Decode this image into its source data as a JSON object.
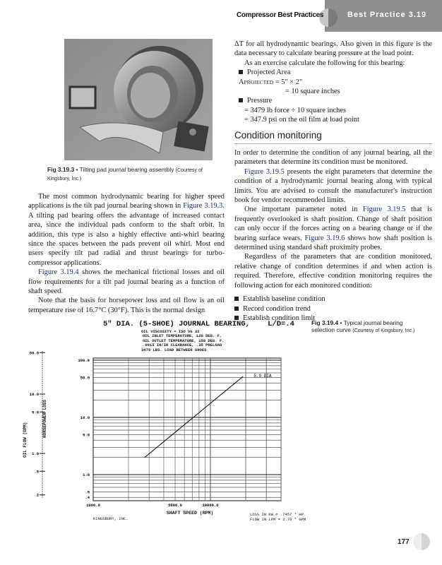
{
  "header": {
    "book_title": "Compressor Best Practices",
    "section_label": "Best Practice 3.19"
  },
  "figure_3": {
    "label": "Fig 3.19.3",
    "bullet": "•",
    "title": "Tilting pad journal bearing assembly",
    "credit": "(Courtesy of Kingsbury, Inc.)"
  },
  "figure_4": {
    "label": "Fig 3.19.4",
    "bullet": "•",
    "title": "Typical journal bearing selection curve",
    "credit": "(Courtesy of Kingsbury, Inc.)"
  },
  "left_col": {
    "p1": {
      "a": "The most common hydrodynamic bearing for higher speed applications is the tilt pad journal bearing shown in ",
      "link": "Figure 3.19.3",
      "b": ". A tilting pad bearing offers the advantage of increased contact area, since the individual pads conform to the shaft orbit. In addition, this type is also a highly effective anti-whirl bearing since the spaces between the pads prevent oil whirl. Most end users specify tilt pad radial and thrust bearings for turbo-compressor applications."
    },
    "p2": {
      "link": "Figure 3.19.4",
      "b": " shows the mechanical frictional losses and oil flow requirements for a tilt pad journal bearing as a function of shaft speed."
    },
    "p3": "Note that the basis for horsepower loss and oil flow is an oil temperature rise of 16.7°C (30°F). This is the normal design"
  },
  "right_col": {
    "p1": "ΔT for all hydrodynamic bearings. Also given in this figure is the data necessary to calculate bearing pressure at the load point.",
    "p2": "As an exercise calculate the following for this bearing:",
    "bullet1": "Projected Area",
    "area_lhs": "A",
    "area_sub": "PROJECTED",
    "area_eq1": "= 5\" × 2\"",
    "area_eq2": "= 10 square inches",
    "bullet2": "Pressure",
    "press_eq1": "= 3479 lb force ÷ 10 square inches",
    "press_eq2": "= 347.9 psi on the oil film at load point",
    "section_title": "Condition monitoring",
    "p3": "In order to determine the condition of any journal bearing, all the parameters that determine its condition must be monitored.",
    "p4": {
      "link": "Figure 3.19.5",
      "b": " presents the eight parameters that determine the condition of a hydrodynamic journal bearing along with typical limits. You are advised to consult the manufacturer's instruction book for vendor recommended limits."
    },
    "p5": {
      "a": "One important parameter noted in ",
      "link": "Figure 3.19.5",
      "b": " that is frequently overlooked is shaft position. Change of shaft position can only occur if the forces acting on a bearing change or if the bearing surface wears. ",
      "link2": "Figure 3.19.6",
      "c": " shows how shaft position is determined using standard shaft proximity probes."
    },
    "p6": "Regardless of the parameters that are condition monitored, relative change of condition determines if and when action is required. Therefore, effective condition monitoring requires the following action for each monitored condition:",
    "actions": [
      "Establish baseline condition",
      "Record condition trend",
      "Establish condition limit"
    ]
  },
  "chart_data": {
    "type": "line",
    "title": "5\" DIA. (5-SHOE) JOURNAL BEARING,",
    "title_right": "L/D=.4",
    "notes": [
      "OIL VISCOSITY = ISO VG 32",
      "OIL INLET TEMPERATURE, 120 DEG. F.",
      "OIL OUTLET TEMPERATURE, 150 DEG. F.",
      ".0015 IN/IN CLEARANCE, .35 PRELOAD",
      "3479 LBS. LOAD BETWEEN SHOES"
    ],
    "xlabel": "SHAFT SPEED (RPM)",
    "x_scale": "log",
    "xlim": [
      1000,
      40000
    ],
    "x_ticks": [
      "1000.0",
      "5000.0",
      "10000.0"
    ],
    "ylabel": "HORSEPOWER LOSS",
    "y_scale": "log",
    "ylim": [
      0.35,
      130
    ],
    "y_ticks": [
      "100.0",
      "50.0",
      "10.0",
      "5.0",
      "1.0",
      ".5",
      ".4"
    ],
    "y2label": "OIL FLOW (GPM)",
    "y2_ticks": [
      "50.0",
      "10.0",
      "5.0",
      "1.0",
      ".5",
      ".2"
    ],
    "series": [
      {
        "name": "5.0 DIA",
        "points": [
          [
            2750,
            2.0
          ],
          [
            19000,
            52
          ]
        ]
      }
    ],
    "grid": true,
    "footer_left": "KINGSBURY, INC.",
    "footer_right": [
      "LOSS IN KW = .7457 * HP",
      "FLOW IN LPM = 3.79 * GPM"
    ]
  },
  "page_number": "177"
}
